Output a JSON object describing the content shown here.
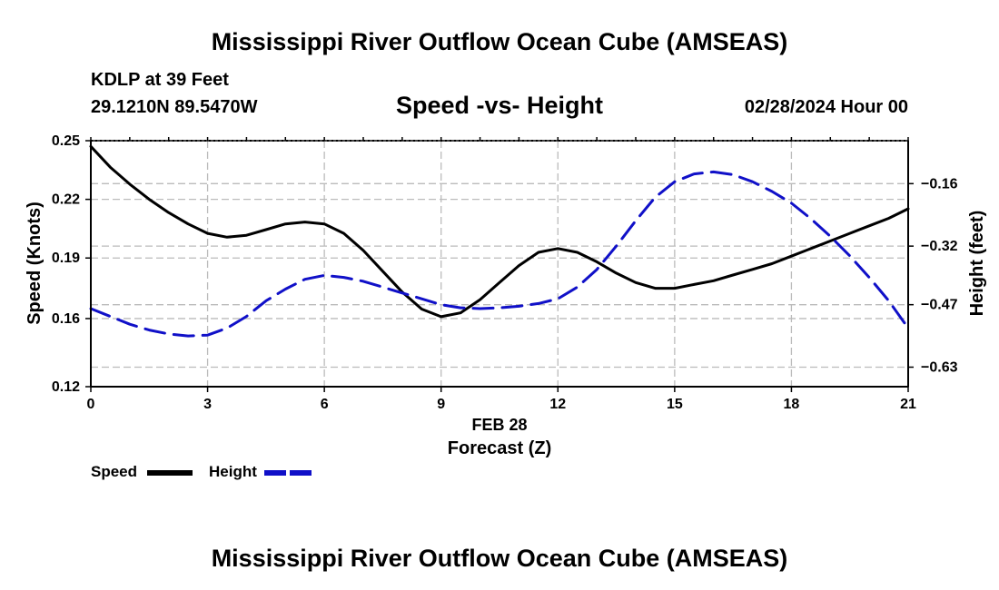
{
  "page": {
    "title": "Mississippi River Outflow Ocean Cube (AMSEAS)",
    "station": "KDLP at 39 Feet",
    "coordinates": "29.1210N  89.5470W",
    "chart_title": "Speed -vs- Height",
    "date": "02/28/2024 Hour 00",
    "footer_title": "Mississippi River Outflow Ocean Cube (AMSEAS)"
  },
  "colors": {
    "speed": "#000000",
    "height": "#1010c8",
    "grid": "#bbbbbb"
  },
  "chart_data": {
    "type": "line",
    "title": "Speed -vs- Height",
    "xlabel": "Forecast (Z)",
    "xlabel_date": "FEB 28",
    "ylabel": "Speed (Knots)",
    "y2label": "Height (feet)",
    "x_ticks": [
      0,
      3,
      6,
      9,
      12,
      15,
      18,
      21
    ],
    "x_tick_labels": [
      "0",
      "3",
      "6",
      "9",
      "12",
      "15",
      "18",
      "21"
    ],
    "xlim": [
      0,
      21
    ],
    "ylim": [
      0.12,
      0.25
    ],
    "y_ticks": [
      0.12,
      0.16,
      0.19,
      0.22,
      0.25
    ],
    "y_tick_labels": [
      "0.12",
      "0.16",
      "0.19",
      "0.22",
      "0.25"
    ],
    "y_tick_positions": [
      0.12,
      0.156,
      0.188,
      0.219,
      0.25
    ],
    "y2lim": [
      -0.68,
      -0.05
    ],
    "y2_ticks": [
      -0.63,
      -0.47,
      -0.32,
      -0.16
    ],
    "y2_tick_labels": [
      "−0.63",
      "−0.47",
      "−0.32",
      "−0.16"
    ],
    "grid": true,
    "legend_position": "bottom-left",
    "series": [
      {
        "name": "Speed",
        "axis": "left",
        "style": "solid",
        "x": [
          0,
          0.5,
          1,
          1.5,
          2,
          2.5,
          3,
          3.5,
          4,
          4.5,
          5,
          5.5,
          6,
          6.5,
          7,
          7.5,
          8,
          8.5,
          9,
          9.5,
          10,
          10.5,
          11,
          11.5,
          12,
          12.5,
          13,
          13.5,
          14,
          14.5,
          15,
          15.5,
          16,
          16.5,
          17,
          17.5,
          18,
          18.5,
          19,
          19.5,
          20,
          20.5,
          21
        ],
        "values": [
          0.247,
          0.236,
          0.227,
          0.219,
          0.212,
          0.206,
          0.201,
          0.199,
          0.2,
          0.203,
          0.206,
          0.207,
          0.206,
          0.201,
          0.192,
          0.181,
          0.17,
          0.161,
          0.157,
          0.159,
          0.166,
          0.175,
          0.184,
          0.191,
          0.193,
          0.191,
          0.186,
          0.18,
          0.175,
          0.172,
          0.172,
          0.174,
          0.176,
          0.179,
          0.182,
          0.185,
          0.189,
          0.193,
          0.197,
          0.201,
          0.205,
          0.209,
          0.214
        ]
      },
      {
        "name": "Height",
        "axis": "right",
        "style": "dashed",
        "x": [
          0,
          0.5,
          1,
          1.5,
          2,
          2.5,
          3,
          3.5,
          4,
          4.5,
          5,
          5.5,
          6,
          6.5,
          7,
          7.5,
          8,
          8.5,
          9,
          9.5,
          10,
          10.5,
          11,
          11.5,
          12,
          12.5,
          13,
          13.5,
          14,
          14.5,
          15,
          15.5,
          16,
          16.5,
          17,
          17.5,
          18,
          18.5,
          19,
          19.5,
          20,
          20.5,
          21
        ],
        "values": [
          -0.48,
          -0.5,
          -0.52,
          -0.535,
          -0.545,
          -0.55,
          -0.548,
          -0.53,
          -0.5,
          -0.46,
          -0.43,
          -0.405,
          -0.395,
          -0.4,
          -0.41,
          -0.425,
          -0.44,
          -0.455,
          -0.47,
          -0.478,
          -0.48,
          -0.478,
          -0.474,
          -0.467,
          -0.455,
          -0.425,
          -0.38,
          -0.32,
          -0.255,
          -0.195,
          -0.155,
          -0.135,
          -0.13,
          -0.137,
          -0.155,
          -0.18,
          -0.21,
          -0.25,
          -0.295,
          -0.345,
          -0.4,
          -0.46,
          -0.53
        ]
      }
    ]
  },
  "legend": {
    "speed_label": "Speed",
    "height_label": "Height"
  }
}
